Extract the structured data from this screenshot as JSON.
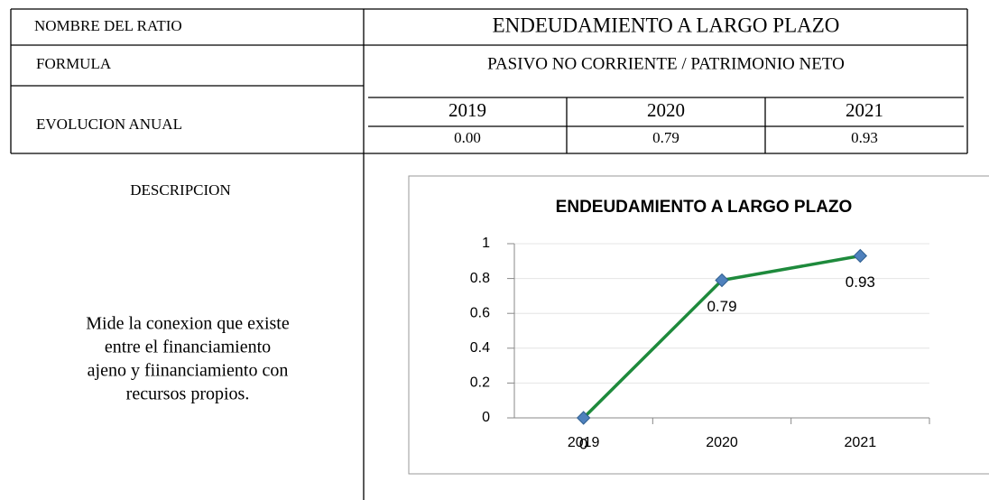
{
  "table": {
    "rows": [
      [
        "NOMBRE DEL RATIO",
        "ENDEUDAMIENTO A LARGO PLAZO"
      ],
      [
        "FORMULA",
        "PASIVO NO CORRIENTE / PATRIMONIO NETO"
      ]
    ],
    "evolution": {
      "label": "EVOLUCION ANUAL",
      "years": [
        "2019",
        "2020",
        "2021"
      ],
      "values": [
        "0.00",
        "0.79",
        "0.93"
      ]
    },
    "description_header": "DESCRIPCION",
    "description": [
      "Mide la conexion que existe",
      "entre el financiamiento",
      "ajeno y fiinanciamiento con",
      "recursos propios."
    ]
  },
  "chart_data": {
    "type": "line",
    "title": "ENDEUDAMIENTO A LARGO PLAZO",
    "categories": [
      "2019",
      "2020",
      "2021"
    ],
    "values": [
      0,
      0.79,
      0.93
    ],
    "color": "#1e8a3c",
    "marker_color": "#4f81bd",
    "ylim": [
      0,
      1
    ],
    "yticks": [
      0,
      0.2,
      0.4,
      0.6,
      0.8,
      1
    ],
    "grid": true
  }
}
